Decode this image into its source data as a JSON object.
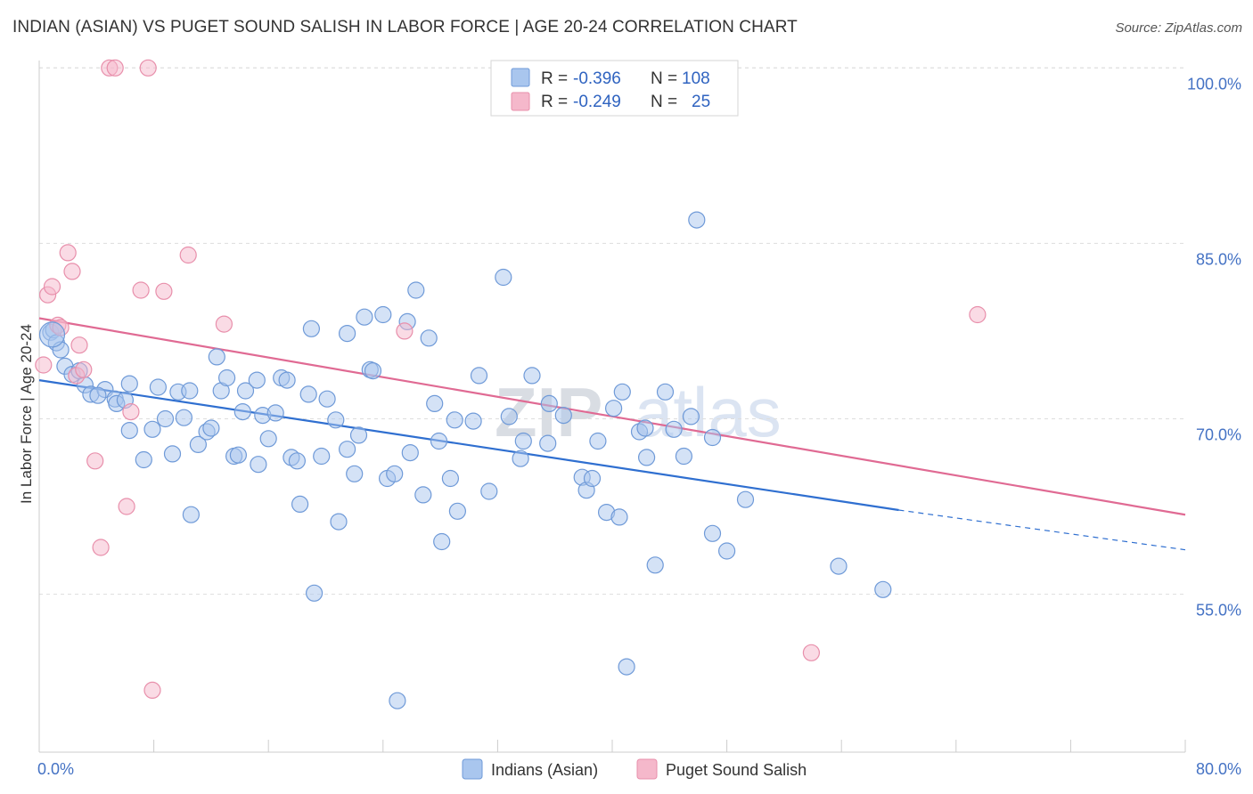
{
  "title": "INDIAN (ASIAN) VS PUGET SOUND SALISH IN LABOR FORCE | AGE 20-24 CORRELATION CHART",
  "source": "Source: ZipAtlas.com",
  "watermark": {
    "part1": "ZIP",
    "part2": "atlas"
  },
  "colors": {
    "blue_fill": "#a9c6ee",
    "blue_stroke": "#6f9ad8",
    "blue_line": "#2f6fd0",
    "pink_fill": "#f5b8cb",
    "pink_stroke": "#e88fab",
    "pink_line": "#e06a93",
    "tick_text": "#4472c4",
    "grid": "#dddddd"
  },
  "legend": {
    "rows": [
      {
        "r_label": "R = ",
        "r_value": "-0.396",
        "n_label": "N = ",
        "n_value": "108"
      },
      {
        "r_label": "R = ",
        "r_value": "-0.249",
        "n_label": "N = ",
        "n_value": "25"
      }
    ]
  },
  "chart_data": {
    "type": "scatter",
    "title": "INDIAN (ASIAN) VS PUGET SOUND SALISH IN LABOR FORCE | AGE 20-24 CORRELATION CHART",
    "xlabel": "",
    "ylabel": "In Labor Force | Age 20-24",
    "xlim": [
      0,
      80
    ],
    "ylim": [
      41.5,
      102
    ],
    "x_tick_labels": [
      "0.0%",
      "80.0%"
    ],
    "y_ticks": [
      55,
      70,
      85,
      100
    ],
    "y_tick_labels": [
      "55.0%",
      "70.0%",
      "85.0%",
      "100.0%"
    ],
    "grid": true,
    "legend_position": "top-center",
    "series": [
      {
        "name": "Indians (Asian)",
        "color": "#a9c6ee",
        "r": -0.396,
        "n": 108,
        "trend": {
          "x0": 0,
          "y0": 73.3,
          "x1": 60,
          "y1": 62.2,
          "dashed_to_x": 80,
          "dashed_to_y": 58.8
        },
        "points": [
          [
            0.8,
            77.4
          ],
          [
            1.0,
            77.6
          ],
          [
            1.2,
            76.5
          ],
          [
            1.5,
            75.9
          ],
          [
            1.8,
            74.5
          ],
          [
            2.3,
            73.8
          ],
          [
            2.8,
            74.1
          ],
          [
            3.2,
            72.9
          ],
          [
            3.6,
            72.1
          ],
          [
            4.6,
            72.5
          ],
          [
            4.1,
            72.0
          ],
          [
            5.3,
            71.7
          ],
          [
            5.4,
            71.3
          ],
          [
            6.0,
            71.6
          ],
          [
            6.3,
            69.0
          ],
          [
            6.3,
            73.0
          ],
          [
            7.3,
            66.5
          ],
          [
            7.9,
            69.1
          ],
          [
            8.3,
            72.7
          ],
          [
            8.8,
            70.0
          ],
          [
            9.3,
            67.0
          ],
          [
            9.7,
            72.3
          ],
          [
            10.1,
            70.1
          ],
          [
            10.5,
            72.4
          ],
          [
            10.6,
            61.8
          ],
          [
            11.1,
            67.8
          ],
          [
            11.7,
            68.9
          ],
          [
            12.0,
            69.2
          ],
          [
            12.4,
            75.3
          ],
          [
            12.7,
            72.4
          ],
          [
            13.1,
            73.5
          ],
          [
            13.6,
            66.8
          ],
          [
            13.9,
            66.9
          ],
          [
            14.2,
            70.6
          ],
          [
            14.4,
            72.4
          ],
          [
            15.2,
            73.3
          ],
          [
            15.3,
            66.1
          ],
          [
            15.6,
            70.3
          ],
          [
            16.0,
            68.3
          ],
          [
            16.5,
            70.5
          ],
          [
            16.9,
            73.5
          ],
          [
            17.3,
            73.3
          ],
          [
            17.6,
            66.7
          ],
          [
            18.0,
            66.4
          ],
          [
            18.2,
            62.7
          ],
          [
            18.8,
            72.1
          ],
          [
            19.0,
            77.7
          ],
          [
            19.2,
            55.1
          ],
          [
            19.7,
            66.8
          ],
          [
            20.1,
            71.7
          ],
          [
            20.7,
            69.9
          ],
          [
            20.9,
            61.2
          ],
          [
            21.5,
            77.3
          ],
          [
            21.5,
            67.4
          ],
          [
            22.0,
            65.3
          ],
          [
            22.3,
            68.6
          ],
          [
            22.7,
            78.7
          ],
          [
            23.1,
            74.2
          ],
          [
            23.3,
            74.1
          ],
          [
            24.0,
            78.9
          ],
          [
            24.3,
            64.9
          ],
          [
            24.8,
            65.3
          ],
          [
            25.0,
            45.9
          ],
          [
            25.7,
            78.3
          ],
          [
            25.9,
            67.1
          ],
          [
            26.3,
            81.0
          ],
          [
            26.8,
            63.5
          ],
          [
            27.2,
            76.9
          ],
          [
            27.6,
            71.3
          ],
          [
            27.9,
            68.1
          ],
          [
            28.1,
            59.5
          ],
          [
            28.7,
            64.9
          ],
          [
            29.0,
            69.9
          ],
          [
            29.2,
            62.1
          ],
          [
            30.3,
            69.8
          ],
          [
            30.7,
            73.7
          ],
          [
            31.4,
            63.8
          ],
          [
            32.4,
            82.1
          ],
          [
            32.8,
            70.2
          ],
          [
            33.6,
            66.6
          ],
          [
            33.8,
            68.1
          ],
          [
            34.4,
            73.7
          ],
          [
            35.5,
            67.9
          ],
          [
            35.6,
            71.3
          ],
          [
            36.6,
            70.3
          ],
          [
            37.9,
            65.0
          ],
          [
            38.2,
            63.9
          ],
          [
            38.6,
            64.9
          ],
          [
            39.0,
            68.1
          ],
          [
            39.6,
            62.0
          ],
          [
            40.1,
            70.9
          ],
          [
            40.5,
            61.6
          ],
          [
            40.7,
            72.3
          ],
          [
            41.0,
            48.8
          ],
          [
            41.9,
            68.9
          ],
          [
            42.3,
            69.2
          ],
          [
            42.4,
            66.7
          ],
          [
            43.0,
            57.5
          ],
          [
            43.7,
            72.3
          ],
          [
            44.3,
            69.1
          ],
          [
            45.0,
            66.8
          ],
          [
            45.5,
            70.2
          ],
          [
            45.9,
            87.0
          ],
          [
            47.0,
            68.4
          ],
          [
            47.0,
            60.2
          ],
          [
            48.0,
            58.7
          ],
          [
            49.3,
            63.1
          ],
          [
            55.8,
            57.4
          ],
          [
            58.9,
            55.4
          ]
        ]
      },
      {
        "name": "Puget Sound Salish",
        "color": "#f5b8cb",
        "r": -0.249,
        "n": 25,
        "trend": {
          "x0": 0,
          "y0": 78.6,
          "x1": 80,
          "y1": 61.8
        },
        "points": [
          [
            0.3,
            74.6
          ],
          [
            0.6,
            80.6
          ],
          [
            0.9,
            81.3
          ],
          [
            1.3,
            78.0
          ],
          [
            1.5,
            77.8
          ],
          [
            2.0,
            84.2
          ],
          [
            2.3,
            82.6
          ],
          [
            2.6,
            73.7
          ],
          [
            2.8,
            76.3
          ],
          [
            3.1,
            74.2
          ],
          [
            3.9,
            66.4
          ],
          [
            4.3,
            59.0
          ],
          [
            4.9,
            100.0
          ],
          [
            5.3,
            100.0
          ],
          [
            6.1,
            62.5
          ],
          [
            6.4,
            70.6
          ],
          [
            7.1,
            81.0
          ],
          [
            7.6,
            100.0
          ],
          [
            7.9,
            46.8
          ],
          [
            8.7,
            80.9
          ],
          [
            10.4,
            84.0
          ],
          [
            12.9,
            78.1
          ],
          [
            25.5,
            77.5
          ],
          [
            53.9,
            50.0
          ],
          [
            65.5,
            78.9
          ]
        ]
      }
    ]
  },
  "bottom_legend": [
    "Indians (Asian)",
    "Puget Sound Salish"
  ]
}
